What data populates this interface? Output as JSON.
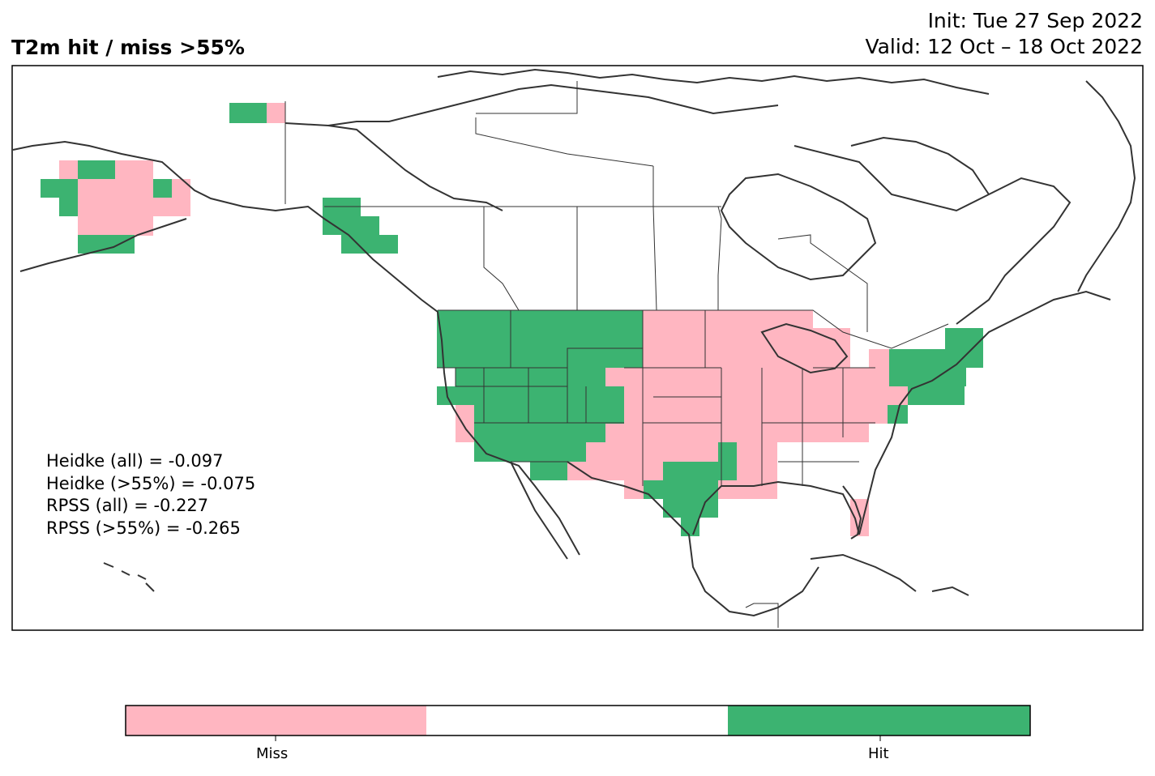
{
  "header": {
    "title": "T2m hit / miss  >55%",
    "init": "Init: Tue 27 Sep 2022",
    "valid": "Valid: 12 Oct – 18 Oct 2022"
  },
  "stats": {
    "heidke_all": "Heidke (all) = -0.097",
    "heidke_55": "Heidke (>55%) = -0.075",
    "rpss_all": "RPSS (all) = -0.227",
    "rpss_55": "RPSS (>55%) = -0.265"
  },
  "colorbar": {
    "miss_label": "Miss",
    "hit_label": "Hit",
    "colors": {
      "miss": "#FFB6C1",
      "neutral": "#FFFFFF",
      "hit": "#3CB371"
    }
  },
  "map_colors": {
    "miss": "#FFB6C1",
    "hit": "#3CB371",
    "coast": "#333333",
    "border": "#333333"
  }
}
